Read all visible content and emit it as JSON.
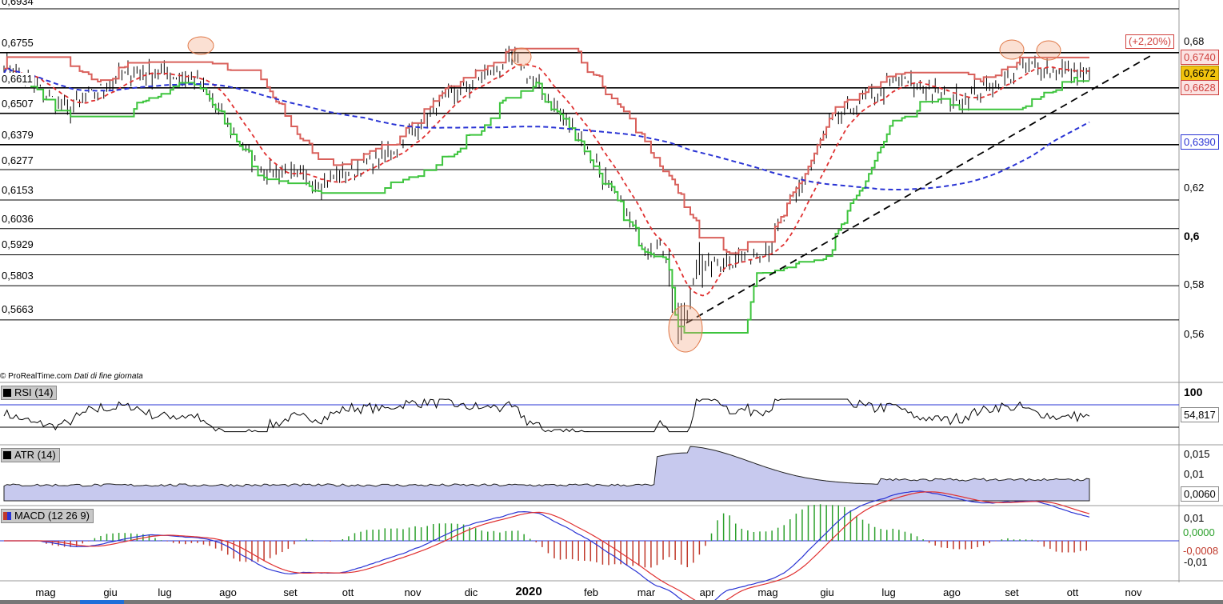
{
  "price_levels": [
    "0,6934",
    "0,6755",
    "0,6611",
    "0,6507",
    "0,6379",
    "0,6277",
    "0,6153",
    "0,6036",
    "0,5929",
    "0,5803",
    "0,5663"
  ],
  "price_axis_ticks": [
    "0,68",
    "0,62",
    "0,6",
    "0,58",
    "0,56"
  ],
  "badges": {
    "pct": "(+2,20%)",
    "v6740": "0,6740",
    "v6672": "0,6672",
    "v6628": "0,6628",
    "v6390": "0,6390"
  },
  "source_note": "© ProRealTime.com",
  "source_note2": "Dati di fine giornata",
  "rsi": {
    "label": "RSI (14)",
    "axis_top": "100",
    "value": "54,817"
  },
  "atr": {
    "label": "ATR (14)",
    "ticks": [
      "0,015",
      "0,01"
    ],
    "value": "0,0060"
  },
  "macd": {
    "label": "MACD (12 26 9)",
    "ticks": [
      "0,01",
      "-0,01"
    ],
    "value1": "0,0000",
    "value2": "-0,0008"
  },
  "months": [
    "mag",
    "giu",
    "lug",
    "ago",
    "set",
    "ott",
    "nov",
    "dic",
    "2020",
    "feb",
    "mar",
    "apr",
    "mag",
    "giu",
    "lug",
    "ago",
    "set",
    "ott",
    "nov"
  ],
  "colors": {
    "price": "#000000",
    "upper_band": "#d9605b",
    "lower_band": "#3dc43d",
    "dashed_red": "#e03030",
    "dashed_blue": "#2a34d4",
    "highlight": "#f4a582",
    "atr_fill": "#c7c9ee",
    "macd_pos": "#2ca02c",
    "macd_neg": "#c0392b"
  },
  "chart_data": {
    "type": "line",
    "title": "",
    "x": [
      "mag",
      "giu",
      "lug",
      "ago",
      "set",
      "ott",
      "nov",
      "dic",
      "2020",
      "feb",
      "mar",
      "apr",
      "mag",
      "giu",
      "lug",
      "ago",
      "set",
      "ott"
    ],
    "series": [
      {
        "values": [
          0.67,
          0.652,
          0.668,
          0.665,
          0.628,
          0.622,
          0.634,
          0.658,
          0.673,
          0.642,
          0.598,
          0.588,
          0.596,
          0.648,
          0.664,
          0.656,
          0.67,
          0.667
        ]
      }
    ],
    "ylim": [
      0.55,
      0.69
    ],
    "horizontal_levels": [
      0.6934,
      0.6755,
      0.6611,
      0.6507,
      0.6379,
      0.6277,
      0.6153,
      0.6036,
      0.5929,
      0.5803,
      0.5663
    ],
    "last_values": {
      "upper": 0.674,
      "close": 0.6672,
      "lower": 0.6628,
      "ma_blue": 0.639
    },
    "rsi_last": 54.817,
    "atr_last": 0.006,
    "macd_last": [
      0.0,
      -0.0008
    ]
  }
}
